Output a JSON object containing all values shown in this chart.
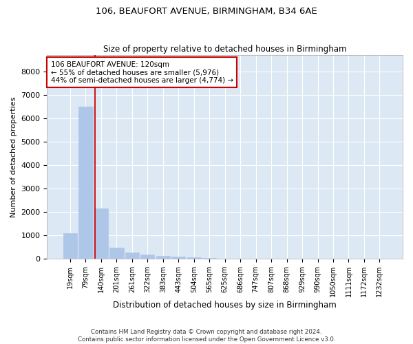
{
  "title": "106, BEAUFORT AVENUE, BIRMINGHAM, B34 6AE",
  "subtitle": "Size of property relative to detached houses in Birmingham",
  "xlabel": "Distribution of detached houses by size in Birmingham",
  "ylabel": "Number of detached properties",
  "bar_color": "#aec6e8",
  "bar_edge_color": "#aec6e8",
  "background_color": "#dce8f3",
  "grid_color": "#ffffff",
  "vline_color": "#cc0000",
  "annotation_box_text": "106 BEAUFORT AVENUE: 120sqm\n← 55% of detached houses are smaller (5,976)\n44% of semi-detached houses are larger (4,774) →",
  "footnote": "Contains HM Land Registry data © Crown copyright and database right 2024.\nContains public sector information licensed under the Open Government Licence v3.0.",
  "categories": [
    "19sqm",
    "79sqm",
    "140sqm",
    "201sqm",
    "261sqm",
    "322sqm",
    "383sqm",
    "443sqm",
    "504sqm",
    "565sqm",
    "625sqm",
    "686sqm",
    "747sqm",
    "807sqm",
    "868sqm",
    "929sqm",
    "990sqm",
    "1050sqm",
    "1111sqm",
    "1172sqm",
    "1232sqm"
  ],
  "values": [
    1100,
    6500,
    2150,
    490,
    270,
    180,
    130,
    80,
    75,
    50,
    0,
    0,
    0,
    0,
    0,
    0,
    0,
    0,
    0,
    0,
    0
  ],
  "ylim": [
    0,
    8700
  ],
  "yticks": [
    0,
    1000,
    2000,
    3000,
    4000,
    5000,
    6000,
    7000,
    8000
  ],
  "vline_x": 1.62
}
